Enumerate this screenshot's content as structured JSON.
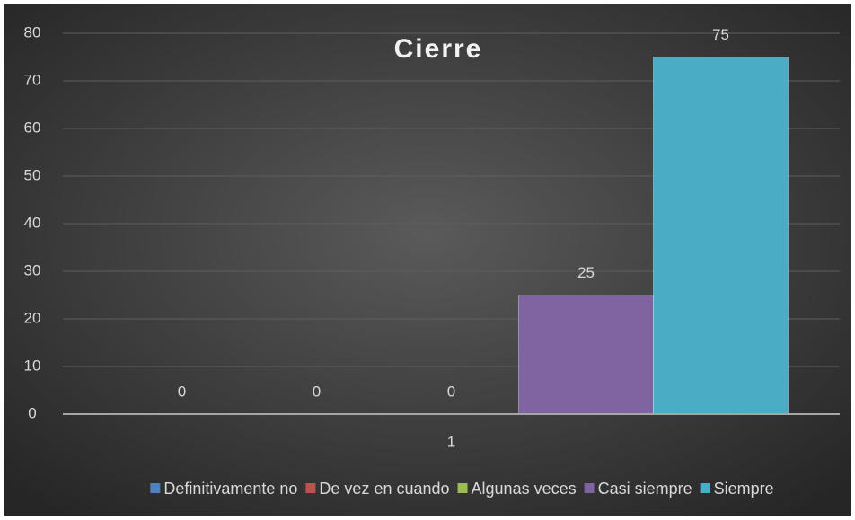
{
  "chart_data": {
    "type": "bar",
    "title": "Cierre",
    "categories": [
      "1"
    ],
    "series": [
      {
        "name": "Definitivamente no",
        "color": "#4f81bd",
        "values": [
          0
        ]
      },
      {
        "name": "De vez en cuando",
        "color": "#c0504d",
        "values": [
          0
        ]
      },
      {
        "name": "Algunas veces",
        "color": "#9bbb59",
        "values": [
          0
        ]
      },
      {
        "name": "Casi siempre",
        "color": "#8064a2",
        "values": [
          25
        ]
      },
      {
        "name": "Siempre",
        "color": "#4bacc6",
        "values": [
          75
        ]
      }
    ],
    "ylim": [
      0,
      80
    ],
    "yticks": [
      0,
      10,
      20,
      30,
      40,
      50,
      60,
      70,
      80
    ],
    "grid": true,
    "legend": "bottom"
  }
}
